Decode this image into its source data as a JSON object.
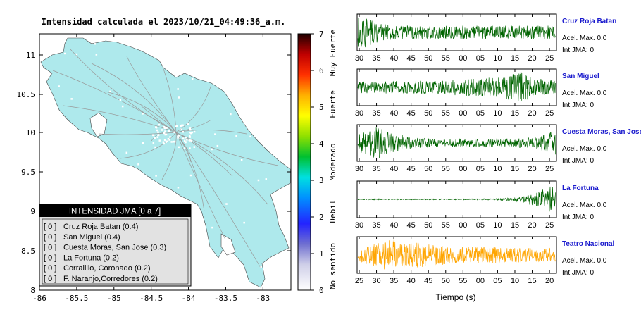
{
  "title": "Intensidad calculada el 2023/10/21_04:49:36_a.m.",
  "map": {
    "x_ticks": [
      "-86",
      "-85.5",
      "-85",
      "-84.5",
      "-84",
      "-83.5",
      "-83"
    ],
    "y_ticks": [
      "11",
      "10.5",
      "10",
      "9.5",
      "9",
      "8.5",
      "8"
    ],
    "land_color": "#aee9ec"
  },
  "legend": {
    "header": "INTENSIDAD JMA [0 a 7]",
    "rows": [
      {
        "level": "[ 0 ]",
        "name": "Cruz Roja Batan (0.4)"
      },
      {
        "level": "[ 0 ]",
        "name": "San Miguel (0.4)"
      },
      {
        "level": "[ 0 ]",
        "name": "Cuesta Moras, San Jose (0.3)"
      },
      {
        "level": "[ 0 ]",
        "name": "La Fortuna (0.2)"
      },
      {
        "level": "[ 0 ]",
        "name": "Corralillo, Coronado (0.2)"
      },
      {
        "level": "[ 0 ]",
        "name": "F. Naranjo,Corredores (0.2)"
      }
    ]
  },
  "colorbar": {
    "ticks": [
      "0",
      "1",
      "2",
      "3",
      "4",
      "5",
      "6",
      "7"
    ],
    "labels": [
      "No sentido",
      "Debil",
      "Moderado",
      "Fuerte",
      "Muy Fuerte"
    ]
  },
  "chart_data": {
    "type": "line",
    "xlabel": "Tiempo (s)",
    "panels": [
      {
        "station": "Cruz Roja Batan",
        "accel": "Acel. Max. 0.0",
        "jma": "Int JMA: 0",
        "color": "#006400",
        "x_ticks": [
          "30",
          "35",
          "40",
          "45",
          "50",
          "55",
          "00",
          "05",
          "10",
          "15",
          "20",
          "25"
        ],
        "envelope": [
          1,
          0.9,
          0.55,
          0.45,
          0.42,
          0.4,
          0.4,
          0.4,
          0.4,
          0.4,
          0.4,
          0.4,
          0.4,
          0.4,
          0.4,
          0.4,
          0.4,
          0.4,
          0.4,
          0.4
        ]
      },
      {
        "station": "San Miguel",
        "accel": "Acel. Max. 0.0",
        "jma": "Int JMA: 0",
        "color": "#006400",
        "x_ticks": [
          "30",
          "35",
          "40",
          "45",
          "50",
          "55",
          "00",
          "05",
          "10",
          "15",
          "20",
          "25"
        ],
        "envelope": [
          0.35,
          0.35,
          0.35,
          0.4,
          0.35,
          0.35,
          0.4,
          0.35,
          0.4,
          0.45,
          0.5,
          0.55,
          0.55,
          0.6,
          0.65,
          0.8,
          1,
          0.6,
          0.45,
          0.4
        ]
      },
      {
        "station": "Cuesta Moras, San Jose",
        "accel": "Acel. Max. 0.0",
        "jma": "Int JMA: 0",
        "color": "#006400",
        "x_ticks": [
          "30",
          "35",
          "40",
          "45",
          "50",
          "55",
          "00",
          "05",
          "10",
          "15",
          "20",
          "25"
        ],
        "envelope": [
          0.5,
          0.7,
          1,
          0.6,
          0.5,
          0.4,
          0.3,
          0.25,
          0.25,
          0.25,
          0.25,
          0.25,
          0.25,
          0.25,
          0.25,
          0.25,
          0.3,
          0.35,
          0.6,
          0.7
        ]
      },
      {
        "station": "La Fortuna",
        "accel": "Acel. Max. 0.0",
        "jma": "Int JMA: 0",
        "color": "#006400",
        "x_ticks": [
          "30",
          "35",
          "40",
          "45",
          "50",
          "55",
          "00",
          "05",
          "10",
          "15",
          "20",
          "25"
        ],
        "envelope": [
          0.03,
          0.03,
          0.03,
          0.03,
          0.03,
          0.03,
          0.03,
          0.03,
          0.03,
          0.03,
          0.03,
          0.03,
          0.04,
          0.05,
          0.07,
          0.12,
          0.2,
          0.4,
          0.7,
          1
        ]
      },
      {
        "station": "Teatro Nacional",
        "accel": "Acel. Max. 0.0",
        "jma": "Int JMA: 0",
        "color": "#ffa500",
        "x_ticks": [
          "25",
          "30",
          "35",
          "40",
          "45",
          "50",
          "55",
          "00",
          "05",
          "10",
          "15",
          "20"
        ],
        "envelope": [
          0.45,
          0.55,
          0.8,
          1,
          0.8,
          0.7,
          0.75,
          0.6,
          0.6,
          0.5,
          0.5,
          0.5,
          0.5,
          0.5,
          0.45,
          0.45,
          0.45,
          0.4,
          0.4,
          0.4
        ]
      }
    ]
  }
}
